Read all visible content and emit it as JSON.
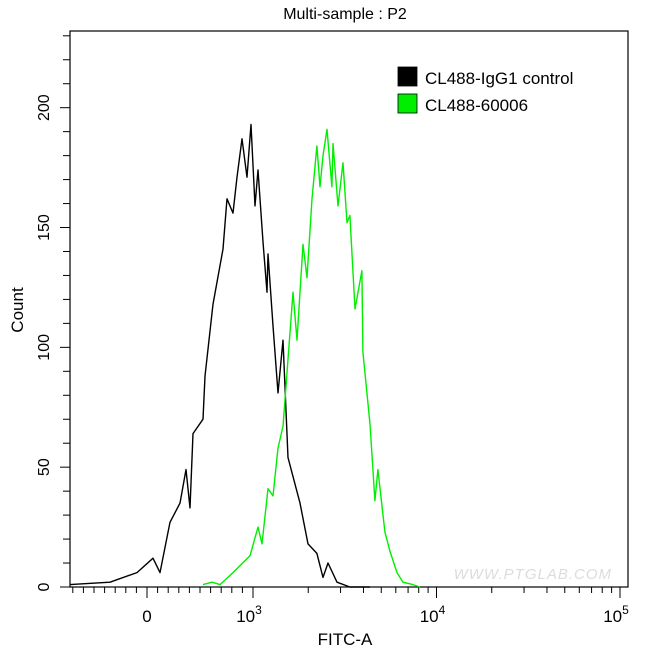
{
  "chart_data": {
    "type": "line",
    "title": "Multi-sample : P2",
    "xlabel": "FITC-A",
    "ylabel": "Count",
    "xscale": "biexponential",
    "xlim": [
      -726,
      100000
    ],
    "ylim": [
      0,
      232
    ],
    "x_ticks": [
      {
        "value": 0,
        "base": "0",
        "exp": ""
      },
      {
        "value": 1000,
        "base": "10",
        "exp": "3"
      },
      {
        "value": 10000,
        "base": "10",
        "exp": "4"
      },
      {
        "value": 100000,
        "base": "10",
        "exp": "5"
      }
    ],
    "y_ticks": [
      0,
      50,
      100,
      150,
      200
    ],
    "legend_position": "top-right",
    "grid": false,
    "watermark": "WWW.PTGLAB.COM",
    "series": [
      {
        "name": "CL488-IgG1 control",
        "color": "#000000",
        "points": [
          [
            -726,
            1
          ],
          [
            -349,
            2
          ],
          [
            -94,
            6
          ],
          [
            57,
            12
          ],
          [
            123,
            6
          ],
          [
            217,
            27
          ],
          [
            311,
            35
          ],
          [
            368,
            49
          ],
          [
            406,
            33
          ],
          [
            434,
            64
          ],
          [
            528,
            70
          ],
          [
            547,
            88
          ],
          [
            623,
            118
          ],
          [
            717,
            141
          ],
          [
            755,
            162
          ],
          [
            811,
            156
          ],
          [
            849,
            171
          ],
          [
            896,
            187
          ],
          [
            943,
            171
          ],
          [
            981,
            193
          ],
          [
            1025,
            159
          ],
          [
            1065,
            174
          ],
          [
            1134,
            144
          ],
          [
            1192,
            123
          ],
          [
            1207,
            139
          ],
          [
            1285,
            109
          ],
          [
            1369,
            81
          ],
          [
            1457,
            103
          ],
          [
            1551,
            54
          ],
          [
            1803,
            35
          ],
          [
            1994,
            18
          ],
          [
            2229,
            14
          ],
          [
            2406,
            4
          ],
          [
            2562,
            10
          ],
          [
            2870,
            2
          ],
          [
            3374,
            0
          ],
          [
            4340,
            0
          ]
        ]
      },
      {
        "name": "CL488-60006",
        "color": "#00ee00",
        "points": [
          [
            528,
            1
          ],
          [
            613,
            2
          ],
          [
            689,
            1
          ],
          [
            811,
            6
          ],
          [
            972,
            13
          ],
          [
            1065,
            25
          ],
          [
            1120,
            18
          ],
          [
            1207,
            41
          ],
          [
            1285,
            38
          ],
          [
            1369,
            58
          ],
          [
            1457,
            67
          ],
          [
            1651,
            123
          ],
          [
            1737,
            103
          ],
          [
            1872,
            143
          ],
          [
            1970,
            129
          ],
          [
            2096,
            162
          ],
          [
            2229,
            184
          ],
          [
            2317,
            167
          ],
          [
            2406,
            180
          ],
          [
            2530,
            191
          ],
          [
            2693,
            167
          ],
          [
            2728,
            185
          ],
          [
            2906,
            159
          ],
          [
            3093,
            177
          ],
          [
            3253,
            152
          ],
          [
            3374,
            155
          ],
          [
            3597,
            116
          ],
          [
            3924,
            132
          ],
          [
            3973,
            98
          ],
          [
            4340,
            68
          ],
          [
            4619,
            36
          ],
          [
            4791,
            49
          ],
          [
            5236,
            23
          ],
          [
            5573,
            15
          ],
          [
            6094,
            6
          ],
          [
            6566,
            2
          ],
          [
            7441,
            1
          ],
          [
            8117,
            0
          ]
        ]
      }
    ]
  }
}
